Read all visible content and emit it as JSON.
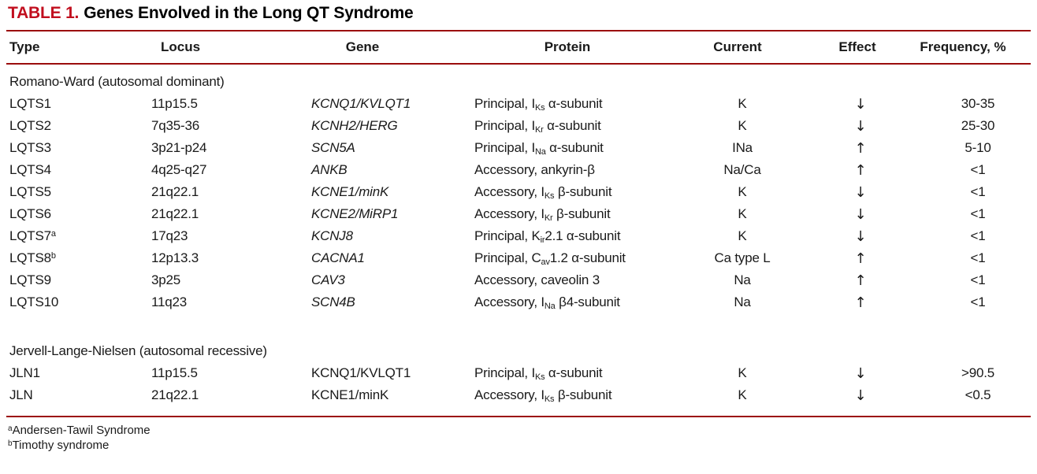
{
  "title": {
    "label": "TABLE 1.",
    "text": "Genes Envolved in the Long QT Syndrome"
  },
  "colors": {
    "accent_red": "#c10e1e",
    "rule_red": "#9b0d0d"
  },
  "columns": [
    "Type",
    "Locus",
    "Gene",
    "Protein",
    "Current",
    "Effect",
    "Frequency, %"
  ],
  "sections": [
    {
      "heading": "Romano-Ward (autosomal dominant)",
      "rows": [
        {
          "type": "LQTS1",
          "sup": "",
          "locus": "11p15.5",
          "gene": "KCNQ1/KVLQT1",
          "gene_italic": true,
          "protein": [
            {
              "t": "Principal, I"
            },
            {
              "s": "Ks"
            },
            {
              "t": " α-subunit"
            }
          ],
          "current": "K",
          "effect": "↓",
          "frequency": "30-35"
        },
        {
          "type": "LQTS2",
          "sup": "",
          "locus": "7q35-36",
          "gene": "KCNH2/HERG",
          "gene_italic": true,
          "protein": [
            {
              "t": "Principal, I"
            },
            {
              "s": "Kr"
            },
            {
              "t": " α-subunit"
            }
          ],
          "current": "K",
          "effect": "↓",
          "frequency": "25-30"
        },
        {
          "type": "LQTS3",
          "sup": "",
          "locus": "3p21-p24",
          "gene": "SCN5A",
          "gene_italic": true,
          "protein": [
            {
              "t": "Principal, I"
            },
            {
              "s": "Na"
            },
            {
              "t": " α-subunit"
            }
          ],
          "current": "INa",
          "effect": "↑",
          "frequency": "5-10"
        },
        {
          "type": "LQTS4",
          "sup": "",
          "locus": "4q25-q27",
          "gene": "ANKB",
          "gene_italic": true,
          "protein": [
            {
              "t": "Accessory, ankyrin-β"
            }
          ],
          "current": "Na/Ca",
          "effect": "↑",
          "frequency": "<1"
        },
        {
          "type": "LQTS5",
          "sup": "",
          "locus": "21q22.1",
          "gene": "KCNE1/minK",
          "gene_italic": true,
          "protein": [
            {
              "t": "Accessory, I"
            },
            {
              "s": "Ks"
            },
            {
              "t": " β-subunit"
            }
          ],
          "current": "K",
          "effect": "↓",
          "frequency": "<1"
        },
        {
          "type": "LQTS6",
          "sup": "",
          "locus": "21q22.1",
          "gene": "KCNE2/MiRP1",
          "gene_italic": true,
          "protein": [
            {
              "t": "Accessory, I"
            },
            {
              "s": "Kr"
            },
            {
              "t": " β-subunit"
            }
          ],
          "current": "K",
          "effect": "↓",
          "frequency": "<1"
        },
        {
          "type": "LQTS7",
          "sup": "a",
          "locus": "17q23",
          "gene": "KCNJ8",
          "gene_italic": true,
          "protein": [
            {
              "t": "Principal, K"
            },
            {
              "s": "ir"
            },
            {
              "t": "2.1 α-subunit"
            }
          ],
          "current": "K",
          "effect": "↓",
          "frequency": "<1"
        },
        {
          "type": "LQTS8",
          "sup": "b",
          "locus": "12p13.3",
          "gene": "CACNA1",
          "gene_italic": true,
          "protein": [
            {
              "t": "Principal, C"
            },
            {
              "s": "av"
            },
            {
              "t": "1.2 α-subunit"
            }
          ],
          "current": "Ca type L",
          "effect": "↑",
          "frequency": "<1"
        },
        {
          "type": "LQTS9",
          "sup": "",
          "locus": "3p25",
          "gene": "CAV3",
          "gene_italic": true,
          "protein": [
            {
              "t": "Accessory, caveolin 3"
            }
          ],
          "current": "Na",
          "effect": "↑",
          "frequency": "<1"
        },
        {
          "type": "LQTS10",
          "sup": "",
          "locus": "11q23",
          "gene": "SCN4B",
          "gene_italic": true,
          "protein": [
            {
              "t": "Accessory, I"
            },
            {
              "s": "Na"
            },
            {
              "t": " β4-subunit"
            }
          ],
          "current": "Na",
          "effect": "↑",
          "frequency": "<1"
        }
      ]
    },
    {
      "heading": "Jervell-Lange-Nielsen (autosomal recessive)",
      "rows": [
        {
          "type": "JLN1",
          "sup": "",
          "locus": "11p15.5",
          "gene": "KCNQ1/KVLQT1",
          "gene_italic": false,
          "protein": [
            {
              "t": "Principal, I"
            },
            {
              "s": "Ks"
            },
            {
              "t": " α-subunit"
            }
          ],
          "current": "K",
          "effect": "↓",
          "frequency": ">90.5"
        },
        {
          "type": "JLN",
          "sup": "",
          "locus": "21q22.1",
          "gene": "KCNE1/minK",
          "gene_italic": false,
          "protein": [
            {
              "t": "Accessory, I"
            },
            {
              "s": "Ks"
            },
            {
              "t": " β-subunit"
            }
          ],
          "current": "K",
          "effect": "↓",
          "frequency": "<0.5"
        }
      ]
    }
  ],
  "footnotes": [
    {
      "sup": "a",
      "text": "Andersen-Tawil Syndrome"
    },
    {
      "sup": "b",
      "text": "Timothy syndrome"
    }
  ]
}
